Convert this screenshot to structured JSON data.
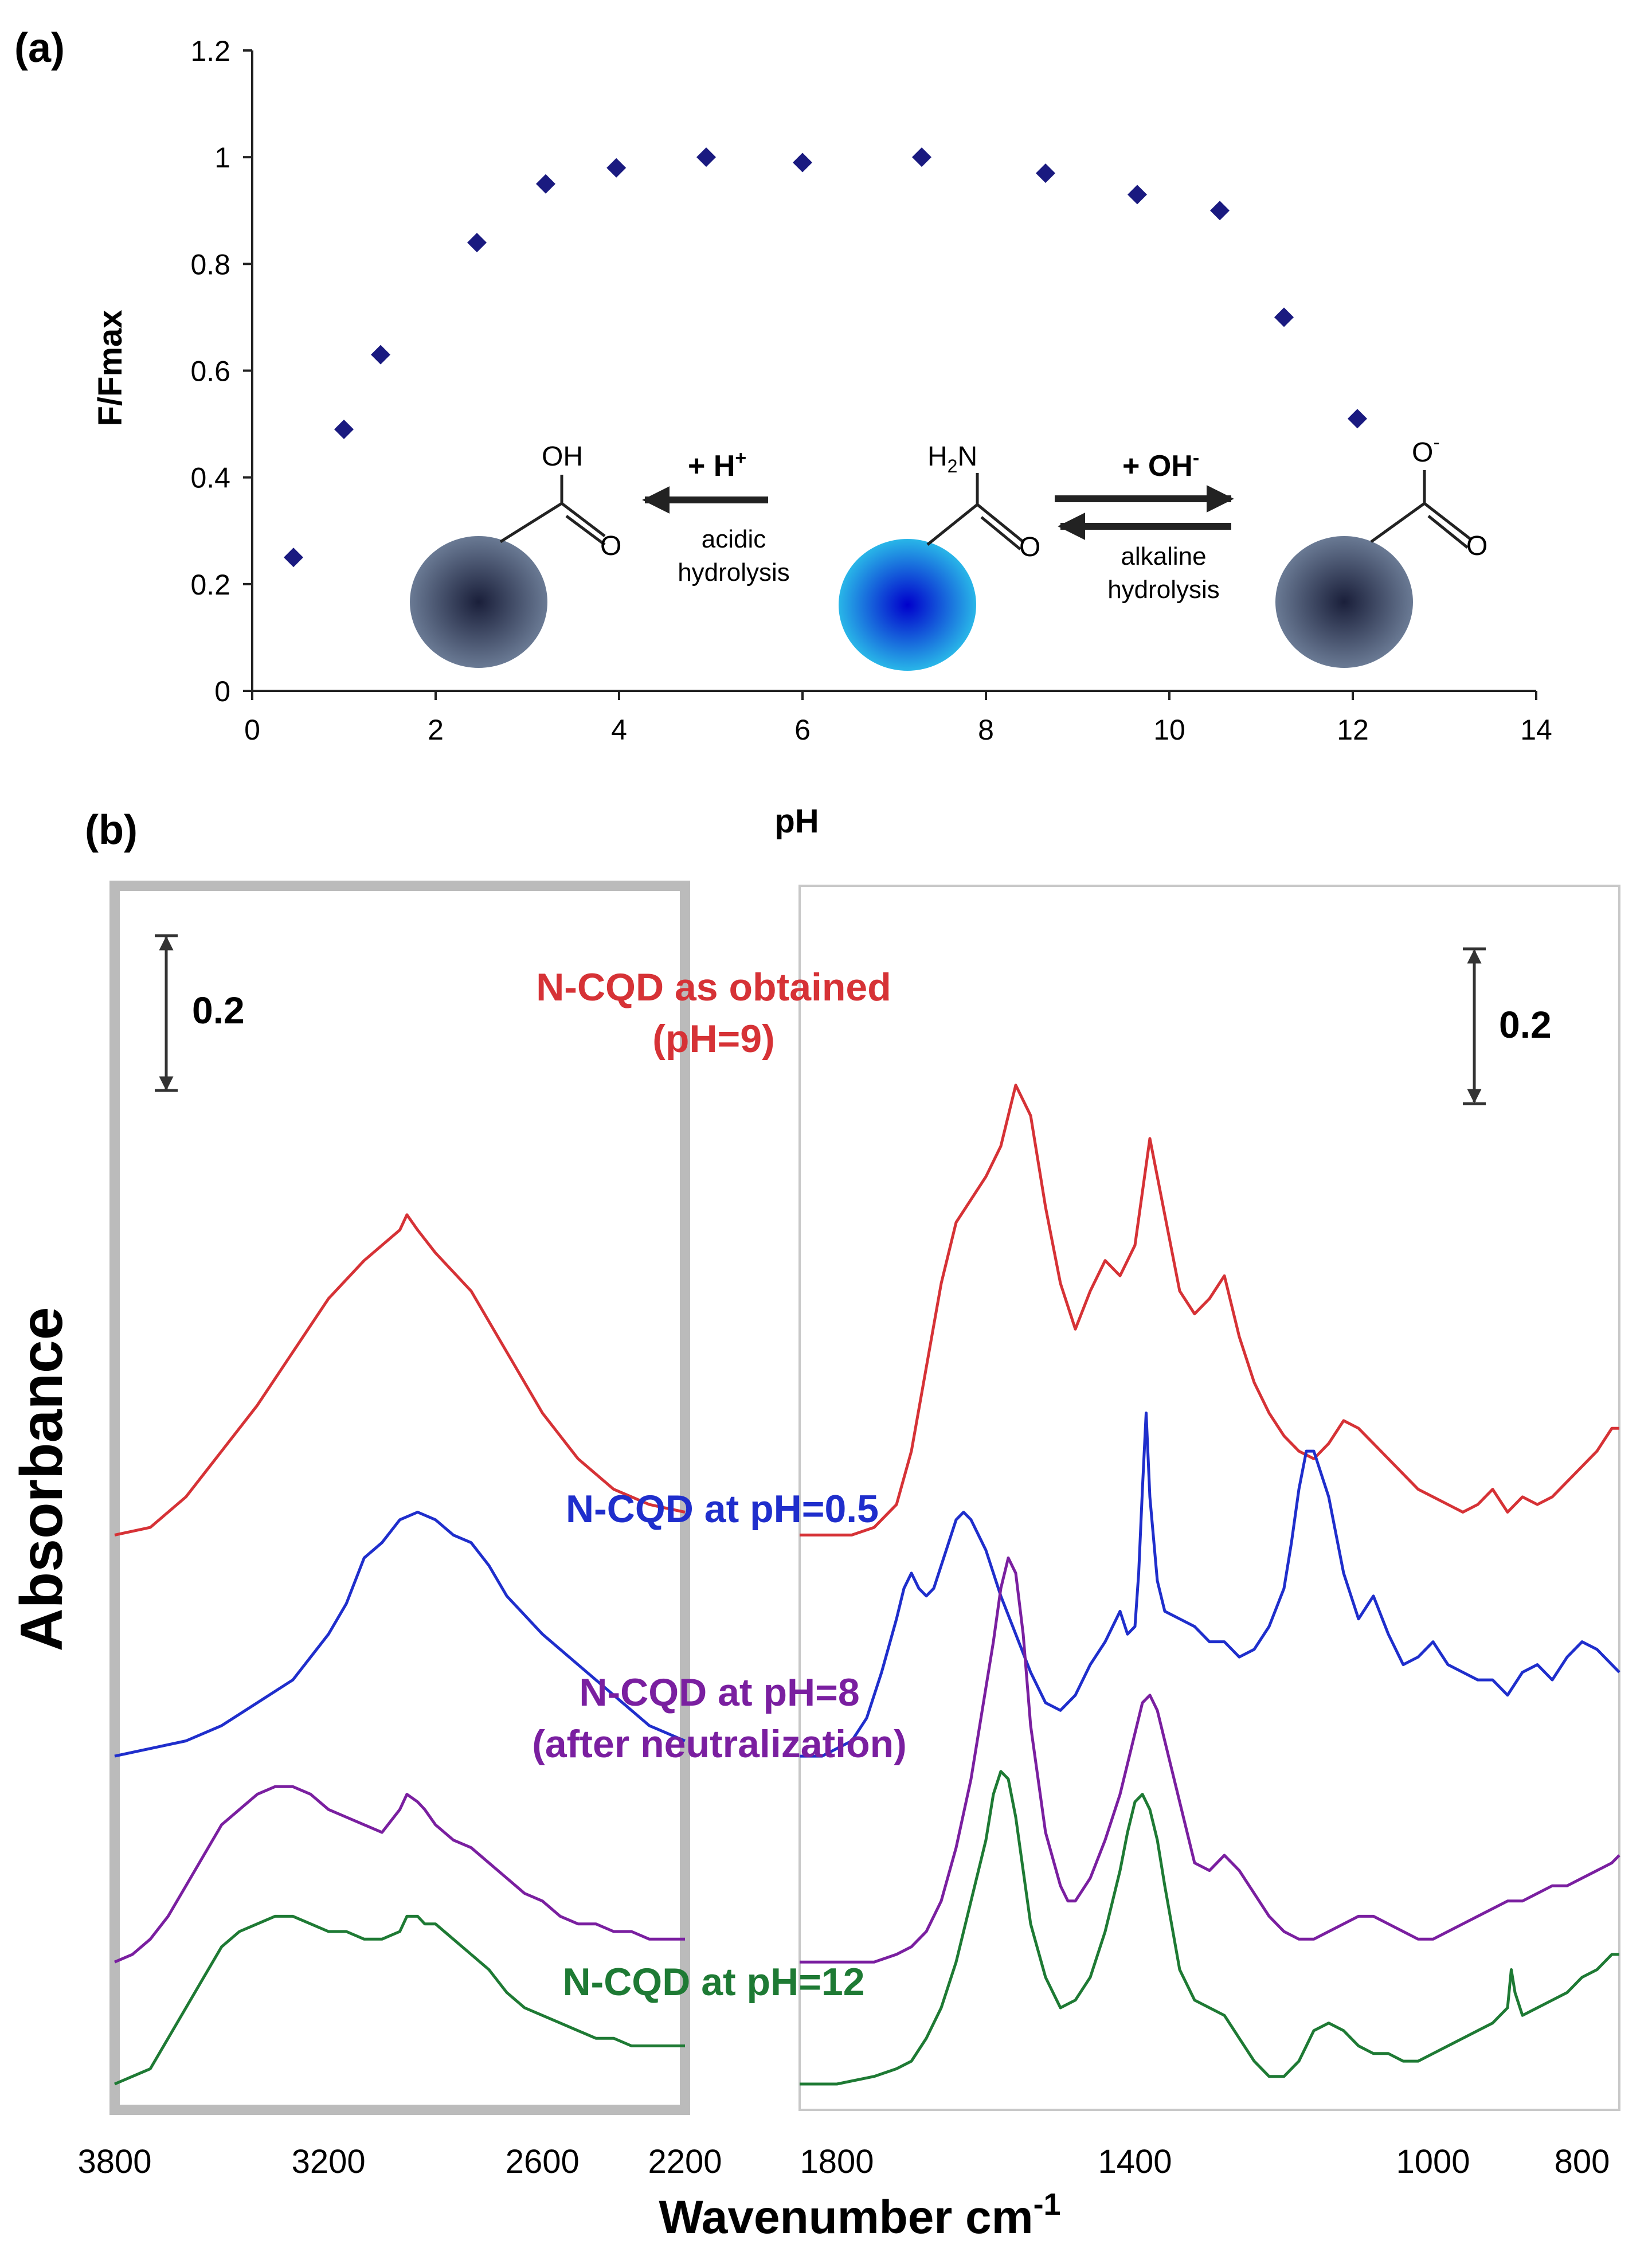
{
  "chart_data": [
    {
      "type": "scatter",
      "panel_label": "(a)",
      "xlabel": "pH",
      "ylabel": "F/Fmax",
      "xlim": [
        0,
        14
      ],
      "ylim": [
        0,
        1.2
      ],
      "x_ticks": [
        0,
        2,
        4,
        6,
        8,
        10,
        12,
        14
      ],
      "y_ticks": [
        0,
        0.2,
        0.4,
        0.6,
        0.8,
        1,
        1.2
      ],
      "grid": false,
      "marker_color": "#1a1a80",
      "series": [
        {
          "name": "F/Fmax",
          "points": [
            {
              "x": 0.45,
              "y": 0.25
            },
            {
              "x": 1.0,
              "y": 0.49
            },
            {
              "x": 1.4,
              "y": 0.63
            },
            {
              "x": 2.45,
              "y": 0.84
            },
            {
              "x": 3.2,
              "y": 0.95
            },
            {
              "x": 3.97,
              "y": 0.98
            },
            {
              "x": 4.95,
              "y": 1.0
            },
            {
              "x": 6.0,
              "y": 0.99
            },
            {
              "x": 7.3,
              "y": 1.0
            },
            {
              "x": 8.65,
              "y": 0.97
            },
            {
              "x": 9.65,
              "y": 0.93
            },
            {
              "x": 10.55,
              "y": 0.9
            },
            {
              "x": 11.25,
              "y": 0.7
            },
            {
              "x": 12.05,
              "y": 0.51
            }
          ]
        }
      ],
      "annotations": {
        "left_reaction": "+ H",
        "left_reaction_sup": "+",
        "left_condition": [
          "acidic",
          "hydrolysis"
        ],
        "right_reaction": "+ OH",
        "right_reaction_sup": "-",
        "right_condition": [
          "alkaline",
          "hydrolysis"
        ],
        "group_acid_oh": "OH",
        "group_amide_h2n": "H",
        "group_amide_h2n_sub": "2",
        "group_amide_n": "N",
        "carbonyl_o": "O",
        "carboxylate_o": "O",
        "carboxylate_charge": "-",
        "dark_dot_color": "#1a1f3a",
        "dark_dot_edge_color": "#6a7a94",
        "bright_dot_color": "#0000cc",
        "bright_dot_edge_color": "#29b6e8"
      }
    },
    {
      "type": "line",
      "panel_label": "(b)",
      "xlabel": "Wavenumber cm",
      "xlabel_sup": "-1",
      "ylabel": "Absorbance",
      "scale_bar_label": "0.2",
      "scale_bar_value": 0.2,
      "panels": [
        {
          "xlim": [
            3800,
            2200
          ],
          "x_ticks": [
            3800,
            3200,
            2600,
            2200
          ]
        },
        {
          "xlim": [
            1850,
            750
          ],
          "x_ticks": [
            1800,
            1400,
            1000,
            800
          ]
        }
      ],
      "series": [
        {
          "name": "N-CQD as obtained (pH=9)",
          "label_lines": [
            "N-CQD as obtained",
            "(pH=9)"
          ],
          "color": "#d63236",
          "offset": 0.72,
          "left_segment": {
            "x": [
              3800,
              3700,
              3600,
              3500,
              3400,
              3300,
              3200,
              3100,
              3000,
              2980,
              2950,
              2900,
              2800,
              2700,
              2600,
              2500,
              2400,
              2300,
              2200
            ],
            "y": [
              0.0,
              0.01,
              0.05,
              0.11,
              0.17,
              0.24,
              0.31,
              0.36,
              0.4,
              0.42,
              0.4,
              0.37,
              0.32,
              0.24,
              0.16,
              0.1,
              0.06,
              0.04,
              0.03
            ]
          },
          "right_segment": {
            "x": [
              1850,
              1780,
              1750,
              1720,
              1700,
              1680,
              1660,
              1640,
              1620,
              1600,
              1580,
              1560,
              1540,
              1520,
              1500,
              1480,
              1460,
              1440,
              1420,
              1400,
              1380,
              1360,
              1340,
              1320,
              1300,
              1280,
              1260,
              1240,
              1220,
              1200,
              1180,
              1160,
              1140,
              1120,
              1100,
              1080,
              1060,
              1040,
              1020,
              1000,
              980,
              960,
              940,
              920,
              900,
              880,
              860,
              840,
              820,
              800,
              780,
              760,
              750
            ],
            "y": [
              0.0,
              0.0,
              0.01,
              0.04,
              0.11,
              0.22,
              0.33,
              0.41,
              0.44,
              0.47,
              0.51,
              0.59,
              0.55,
              0.43,
              0.33,
              0.27,
              0.32,
              0.36,
              0.34,
              0.38,
              0.52,
              0.42,
              0.32,
              0.29,
              0.31,
              0.34,
              0.26,
              0.2,
              0.16,
              0.13,
              0.11,
              0.1,
              0.12,
              0.15,
              0.14,
              0.12,
              0.1,
              0.08,
              0.06,
              0.05,
              0.04,
              0.03,
              0.04,
              0.06,
              0.03,
              0.05,
              0.04,
              0.05,
              0.07,
              0.09,
              0.11,
              0.14,
              0.14
            ]
          }
        },
        {
          "name": "N-CQD at pH=0.5",
          "label_lines": [
            "N-CQD at pH=0.5"
          ],
          "color": "#1f2ecc",
          "offset": 0.43,
          "left_segment": {
            "x": [
              3800,
              3700,
              3600,
              3500,
              3400,
              3300,
              3200,
              3150,
              3100,
              3050,
              3000,
              2950,
              2900,
              2850,
              2800,
              2750,
              2700,
              2600,
              2500,
              2400,
              2300,
              2200
            ],
            "y": [
              0.0,
              0.01,
              0.02,
              0.04,
              0.07,
              0.1,
              0.16,
              0.2,
              0.26,
              0.28,
              0.31,
              0.32,
              0.31,
              0.29,
              0.28,
              0.25,
              0.21,
              0.16,
              0.12,
              0.08,
              0.04,
              0.02
            ]
          },
          "right_segment": {
            "x": [
              1850,
              1820,
              1800,
              1780,
              1760,
              1740,
              1720,
              1710,
              1700,
              1690,
              1680,
              1670,
              1660,
              1650,
              1640,
              1630,
              1620,
              1610,
              1600,
              1590,
              1580,
              1560,
              1540,
              1520,
              1500,
              1480,
              1460,
              1440,
              1420,
              1410,
              1400,
              1395,
              1390,
              1385,
              1380,
              1370,
              1360,
              1340,
              1320,
              1300,
              1280,
              1260,
              1240,
              1220,
              1200,
              1190,
              1180,
              1170,
              1160,
              1140,
              1120,
              1100,
              1080,
              1060,
              1040,
              1020,
              1000,
              980,
              960,
              940,
              920,
              900,
              880,
              860,
              840,
              820,
              800,
              780,
              760,
              750
            ],
            "y": [
              0.0,
              0.0,
              0.01,
              0.02,
              0.05,
              0.11,
              0.18,
              0.22,
              0.24,
              0.22,
              0.21,
              0.22,
              0.25,
              0.28,
              0.31,
              0.32,
              0.31,
              0.29,
              0.27,
              0.24,
              0.21,
              0.16,
              0.11,
              0.07,
              0.06,
              0.08,
              0.12,
              0.15,
              0.19,
              0.16,
              0.17,
              0.24,
              0.35,
              0.45,
              0.34,
              0.23,
              0.19,
              0.18,
              0.17,
              0.15,
              0.15,
              0.13,
              0.14,
              0.17,
              0.22,
              0.28,
              0.35,
              0.4,
              0.4,
              0.34,
              0.24,
              0.18,
              0.21,
              0.16,
              0.12,
              0.13,
              0.15,
              0.12,
              0.11,
              0.1,
              0.1,
              0.08,
              0.11,
              0.12,
              0.1,
              0.13,
              0.15,
              0.14,
              0.12,
              0.11
            ]
          }
        },
        {
          "name": "N-CQD at pH=8 (after neutralization)",
          "label_lines": [
            "N-CQD at pH=8",
            "(after neutralization)"
          ],
          "color": "#7a1fa0",
          "offset": 0.16,
          "left_segment": {
            "x": [
              3800,
              3750,
              3700,
              3650,
              3600,
              3550,
              3500,
              3450,
              3400,
              3350,
              3300,
              3250,
              3200,
              3150,
              3100,
              3050,
              3000,
              2980,
              2950,
              2930,
              2900,
              2850,
              2800,
              2750,
              2700,
              2650,
              2600,
              2550,
              2500,
              2450,
              2400,
              2350,
              2300,
              2250,
              2200
            ],
            "y": [
              0.0,
              0.01,
              0.03,
              0.06,
              0.1,
              0.14,
              0.18,
              0.2,
              0.22,
              0.23,
              0.23,
              0.22,
              0.2,
              0.19,
              0.18,
              0.17,
              0.2,
              0.22,
              0.21,
              0.2,
              0.18,
              0.16,
              0.15,
              0.13,
              0.11,
              0.09,
              0.08,
              0.06,
              0.05,
              0.05,
              0.04,
              0.04,
              0.03,
              0.03,
              0.03
            ]
          },
          "right_segment": {
            "x": [
              1850,
              1800,
              1750,
              1720,
              1700,
              1680,
              1660,
              1640,
              1620,
              1600,
              1590,
              1580,
              1570,
              1560,
              1550,
              1540,
              1520,
              1500,
              1490,
              1480,
              1460,
              1440,
              1420,
              1400,
              1390,
              1380,
              1370,
              1360,
              1340,
              1320,
              1300,
              1280,
              1260,
              1240,
              1220,
              1200,
              1180,
              1160,
              1140,
              1120,
              1100,
              1080,
              1060,
              1040,
              1020,
              1000,
              980,
              960,
              940,
              920,
              900,
              880,
              860,
              840,
              820,
              800,
              780,
              760,
              750
            ],
            "y": [
              0.0,
              0.0,
              0.0,
              0.01,
              0.02,
              0.04,
              0.08,
              0.15,
              0.24,
              0.36,
              0.42,
              0.49,
              0.53,
              0.51,
              0.43,
              0.31,
              0.17,
              0.1,
              0.08,
              0.08,
              0.11,
              0.16,
              0.22,
              0.3,
              0.34,
              0.35,
              0.33,
              0.29,
              0.21,
              0.13,
              0.12,
              0.14,
              0.12,
              0.09,
              0.06,
              0.04,
              0.03,
              0.03,
              0.04,
              0.05,
              0.06,
              0.06,
              0.05,
              0.04,
              0.03,
              0.03,
              0.04,
              0.05,
              0.06,
              0.07,
              0.08,
              0.08,
              0.09,
              0.1,
              0.1,
              0.11,
              0.12,
              0.13,
              0.14
            ]
          }
        },
        {
          "name": "N-CQD at pH=12",
          "label_lines": [
            "N-CQD at pH=12"
          ],
          "color": "#1e7a34",
          "offset": 0.0,
          "left_segment": {
            "x": [
              3800,
              3750,
              3700,
              3650,
              3600,
              3550,
              3500,
              3450,
              3400,
              3350,
              3300,
              3250,
              3200,
              3150,
              3100,
              3050,
              3000,
              2980,
              2950,
              2930,
              2900,
              2850,
              2800,
              2750,
              2700,
              2650,
              2600,
              2550,
              2500,
              2450,
              2400,
              2350,
              2300,
              2250,
              2200
            ],
            "y": [
              0.0,
              0.01,
              0.02,
              0.06,
              0.1,
              0.14,
              0.18,
              0.2,
              0.21,
              0.22,
              0.22,
              0.21,
              0.2,
              0.2,
              0.19,
              0.19,
              0.2,
              0.22,
              0.22,
              0.21,
              0.21,
              0.19,
              0.17,
              0.15,
              0.12,
              0.1,
              0.09,
              0.08,
              0.07,
              0.06,
              0.06,
              0.05,
              0.05,
              0.05,
              0.05
            ]
          },
          "right_segment": {
            "x": [
              1850,
              1800,
              1750,
              1720,
              1700,
              1680,
              1660,
              1640,
              1620,
              1600,
              1590,
              1580,
              1570,
              1560,
              1550,
              1540,
              1520,
              1500,
              1480,
              1460,
              1440,
              1420,
              1410,
              1400,
              1390,
              1380,
              1370,
              1360,
              1340,
              1320,
              1300,
              1280,
              1260,
              1240,
              1220,
              1200,
              1180,
              1160,
              1140,
              1120,
              1100,
              1080,
              1060,
              1040,
              1020,
              1000,
              980,
              960,
              940,
              920,
              910,
              900,
              895,
              890,
              880,
              860,
              840,
              820,
              800,
              780,
              760,
              750
            ],
            "y": [
              0.0,
              0.0,
              0.01,
              0.02,
              0.03,
              0.06,
              0.1,
              0.16,
              0.24,
              0.32,
              0.38,
              0.41,
              0.4,
              0.35,
              0.28,
              0.21,
              0.14,
              0.1,
              0.11,
              0.14,
              0.2,
              0.28,
              0.33,
              0.37,
              0.38,
              0.36,
              0.32,
              0.26,
              0.15,
              0.11,
              0.1,
              0.09,
              0.06,
              0.03,
              0.01,
              0.01,
              0.03,
              0.07,
              0.08,
              0.07,
              0.05,
              0.04,
              0.04,
              0.03,
              0.03,
              0.04,
              0.05,
              0.06,
              0.07,
              0.08,
              0.09,
              0.1,
              0.15,
              0.12,
              0.09,
              0.1,
              0.11,
              0.12,
              0.14,
              0.15,
              0.17,
              0.17
            ]
          }
        }
      ]
    }
  ]
}
